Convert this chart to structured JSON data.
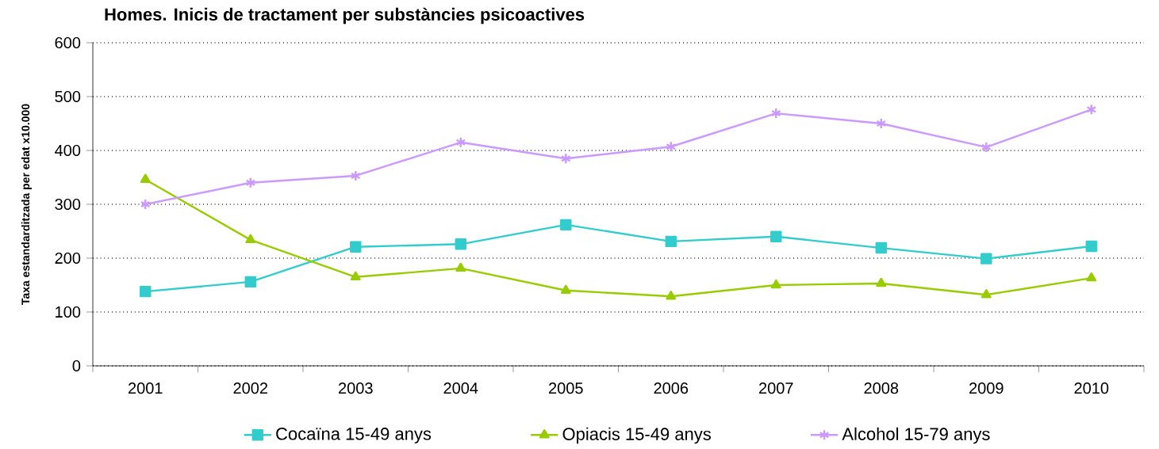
{
  "chart_data": {
    "type": "line",
    "title": "Homes. Inicis de tractament per substàncies psicoactives",
    "ylabel": "Taxa estandarditzada per edat x10.000",
    "categories": [
      "2001",
      "2002",
      "2003",
      "2004",
      "2005",
      "2006",
      "2007",
      "2008",
      "2009",
      "2010"
    ],
    "series": [
      {
        "name": "Cocaïna 15-49 anys",
        "color": "#33cccc",
        "marker": "square",
        "values": [
          138,
          156,
          221,
          226,
          262,
          231,
          240,
          219,
          199,
          222
        ]
      },
      {
        "name": "Opiacis 15-49 anys",
        "color": "#99cc00",
        "marker": "triangle",
        "values": [
          346,
          234,
          165,
          181,
          140,
          129,
          150,
          153,
          132,
          163
        ]
      },
      {
        "name": "Alcohol 15-79 anys",
        "color": "#cc99ff",
        "marker": "cross",
        "values": [
          300,
          340,
          353,
          415,
          385,
          407,
          469,
          450,
          406,
          476
        ]
      }
    ],
    "ylim": [
      0,
      600
    ],
    "yticks": [
      0,
      100,
      200,
      300,
      400,
      500,
      600
    ],
    "grid": "y",
    "legend": "bottom",
    "line_style": "solid"
  }
}
